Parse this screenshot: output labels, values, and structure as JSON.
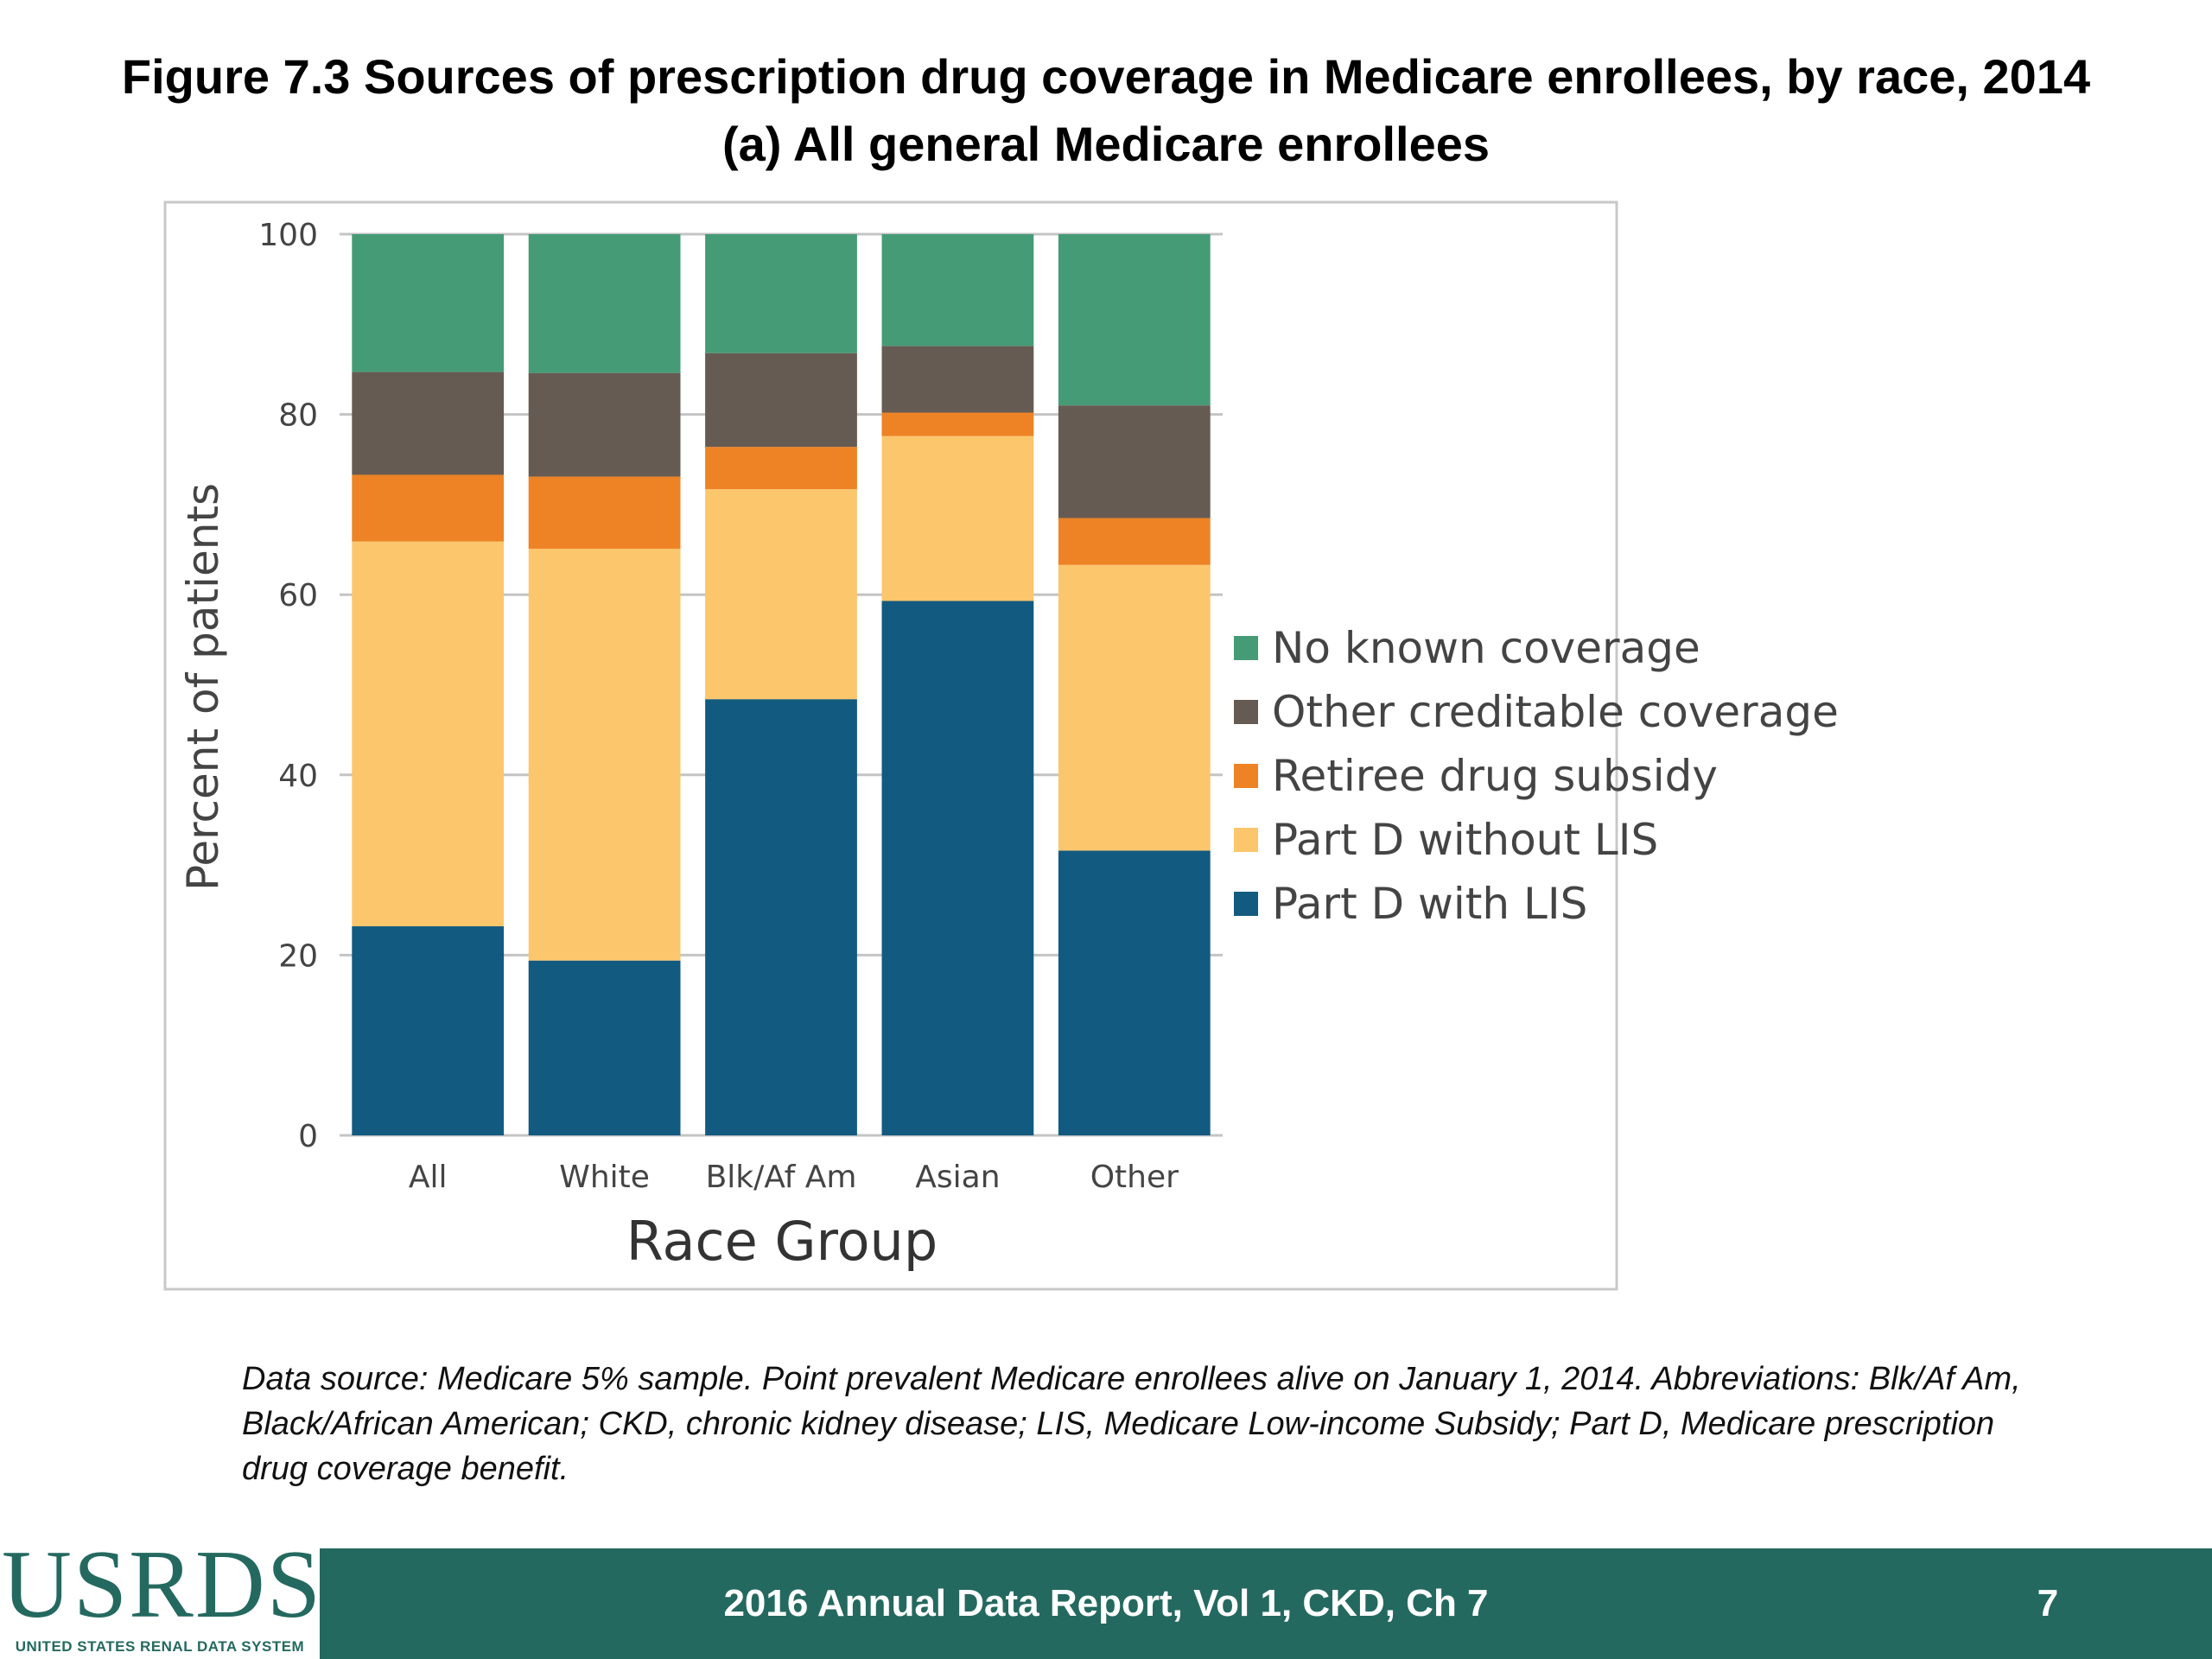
{
  "chart_data": {
    "type": "bar",
    "stacked": true,
    "title": "Figure 7.3 Sources of prescription drug coverage in Medicare enrollees, by race, 2014",
    "subtitle": "(a) All general Medicare enrollees",
    "xlabel": "Race Group",
    "ylabel": "Percent of patients",
    "ylim": [
      0,
      100
    ],
    "yticks": [
      0,
      20,
      40,
      60,
      80,
      100
    ],
    "grid": true,
    "legend_position": "right",
    "categories": [
      "All",
      "White",
      "Blk/Af Am",
      "Asian",
      "Other"
    ],
    "series": [
      {
        "name": "Part D with LIS",
        "color": "#135a80",
        "values": [
          23.2,
          19.4,
          48.4,
          59.3,
          31.6
        ]
      },
      {
        "name": "Part D without LIS",
        "color": "#fcc66c",
        "values": [
          42.7,
          45.7,
          23.3,
          18.3,
          31.7
        ]
      },
      {
        "name": "Retiree drug subsidy",
        "color": "#ed8325",
        "values": [
          7.4,
          8.0,
          4.7,
          2.6,
          5.2
        ]
      },
      {
        "name": "Other creditable coverage",
        "color": "#655b52",
        "values": [
          11.4,
          11.5,
          10.4,
          7.4,
          12.5
        ]
      },
      {
        "name": "No known coverage",
        "color": "#469b77",
        "values": [
          15.3,
          15.4,
          13.2,
          12.4,
          19.0
        ]
      }
    ]
  },
  "footnote": "Data source: Medicare 5% sample. Point prevalent Medicare enrollees alive on January 1, 2014. Abbreviations: Blk/Af Am, Black/African American; CKD, chronic kidney disease; LIS, Medicare Low-income Subsidy; Part D, Medicare prescription drug coverage benefit.",
  "footer": {
    "text": "2016 Annual Data Report, Vol 1, CKD, Ch 7",
    "page_number": "7",
    "logo": "USRDS",
    "logo_subtitle": "UNITED STATES RENAL DATA SYSTEM",
    "color": "#24695f"
  }
}
